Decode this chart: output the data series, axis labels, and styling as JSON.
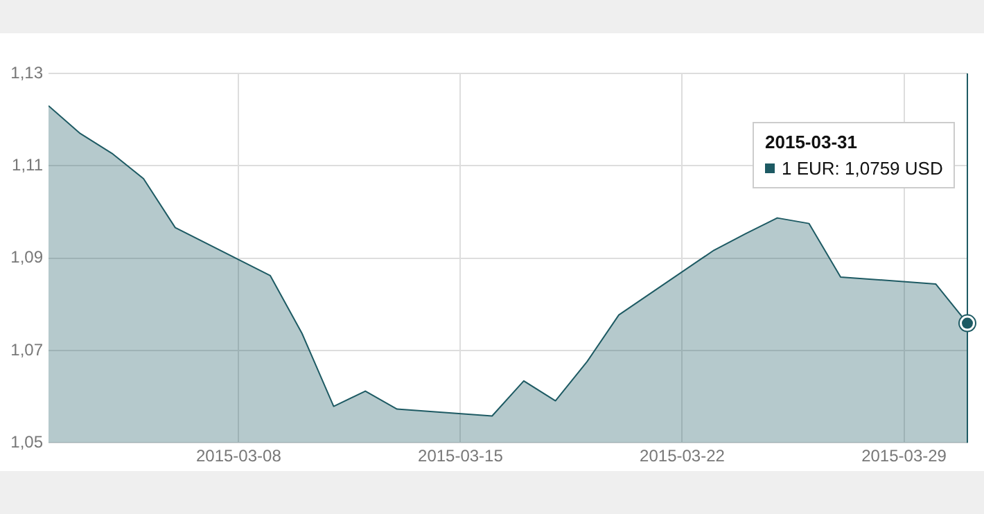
{
  "chart_data": {
    "type": "area",
    "x": [
      "2015-03-02",
      "2015-03-03",
      "2015-03-04",
      "2015-03-05",
      "2015-03-06",
      "2015-03-09",
      "2015-03-10",
      "2015-03-11",
      "2015-03-12",
      "2015-03-13",
      "2015-03-16",
      "2015-03-17",
      "2015-03-18",
      "2015-03-19",
      "2015-03-20",
      "2015-03-23",
      "2015-03-24",
      "2015-03-25",
      "2015-03-26",
      "2015-03-27",
      "2015-03-30",
      "2015-03-31"
    ],
    "series": [
      {
        "color": "#1d5a63",
        "values": [
          1.123,
          1.117,
          1.1127,
          1.1072,
          1.0966,
          1.0862,
          1.0737,
          1.0579,
          1.0612,
          1.0573,
          1.0558,
          1.0634,
          1.0591,
          1.0676,
          1.0777,
          1.0917,
          1.0953,
          1.0987,
          1.0975,
          1.0859,
          1.0844,
          1.0759
        ]
      }
    ],
    "xlim": [
      "2015-03-02",
      "2015-03-31"
    ],
    "xticks": [
      "2015-03-08",
      "2015-03-15",
      "2015-03-22",
      "2015-03-29"
    ],
    "ylim": [
      1.05,
      1.13
    ],
    "yticks": [
      {
        "value": 1.05,
        "label": "1,05"
      },
      {
        "value": 1.07,
        "label": "1,07"
      },
      {
        "value": 1.09,
        "label": "1,09"
      },
      {
        "value": 1.11,
        "label": "1,11"
      },
      {
        "value": 1.13,
        "label": "1,13"
      }
    ],
    "grid": true,
    "legend": false,
    "ref_lines": [
      {
        "axis": "x",
        "value": "2015-03-31",
        "color": "#1d5a63"
      }
    ],
    "annotations": [
      "2015-03-31\n1 EUR: 1,0759 USD"
    ]
  }
}
